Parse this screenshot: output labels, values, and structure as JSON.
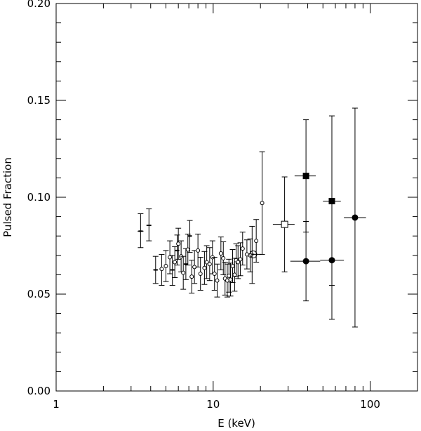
{
  "chart_data": {
    "type": "scatter",
    "title": "",
    "xlabel": "E (keV)",
    "ylabel": "Pulsed Fraction",
    "x_scale": "log",
    "xlim": [
      1,
      200
    ],
    "ylim": [
      0.0,
      0.2
    ],
    "x_tick_labels": [
      "1",
      "10",
      "100"
    ],
    "y_tick_labels": [
      "0.00",
      "0.05",
      "0.10",
      "0.15",
      "0.20"
    ],
    "grid": false,
    "legend": "none",
    "colors": {
      "ink": "#000000",
      "background": "#ffffff"
    },
    "series": [
      {
        "marker": "small-cross",
        "points": [
          {
            "x": 3.45,
            "y": 0.0825,
            "xerr": [
              3.3,
              3.6
            ],
            "yerr": [
              0.074,
              0.0915
            ]
          },
          {
            "x": 3.9,
            "y": 0.0855,
            "xerr": [
              3.75,
              4.05
            ],
            "yerr": [
              0.0775,
              0.094
            ]
          },
          {
            "x": 4.3,
            "y": 0.0625,
            "xerr": [
              4.15,
              4.45
            ],
            "yerr": [
              0.0555,
              0.0695
            ]
          },
          {
            "x": 5.5,
            "y": 0.0625,
            "xerr": [
              5.35,
              5.65
            ],
            "yerr": [
              0.0545,
              0.07
            ]
          },
          {
            "x": 5.9,
            "y": 0.0725,
            "xerr": [
              5.75,
              6.05
            ],
            "yerr": [
              0.065,
              0.0805
            ]
          },
          {
            "x": 6.7,
            "y": 0.0655,
            "xerr": [
              6.55,
              6.85
            ],
            "yerr": [
              0.0575,
              0.0735
            ]
          },
          {
            "x": 7.1,
            "y": 0.08,
            "xerr": [
              6.95,
              7.25
            ],
            "yerr": [
              0.0715,
              0.088
            ]
          },
          {
            "x": 17.7,
            "y": 0.0705,
            "xerr": [
              17.0,
              20.3
            ],
            "yerr": [
              0.0555,
              0.085
            ]
          }
        ]
      },
      {
        "marker": "small-open-circle",
        "points": [
          {
            "x": 4.7,
            "y": 0.063,
            "xerr": [
              4.55,
              4.85
            ],
            "yerr": [
              0.0545,
              0.0705
            ]
          },
          {
            "x": 5.0,
            "y": 0.0645,
            "xerr": [
              4.85,
              5.15
            ],
            "yerr": [
              0.0565,
              0.0725
            ]
          },
          {
            "x": 5.3,
            "y": 0.069,
            "xerr": [
              5.15,
              5.45
            ],
            "yerr": [
              0.0605,
              0.0775
            ]
          },
          {
            "x": 5.7,
            "y": 0.0665,
            "xerr": [
              5.55,
              5.85
            ],
            "yerr": [
              0.0585,
              0.0745
            ]
          },
          {
            "x": 6.0,
            "y": 0.076,
            "xerr": [
              5.85,
              6.15
            ],
            "yerr": [
              0.068,
              0.084
            ]
          },
          {
            "x": 6.25,
            "y": 0.0695,
            "xerr": [
              6.1,
              6.4
            ],
            "yerr": [
              0.0615,
              0.0775
            ]
          },
          {
            "x": 6.45,
            "y": 0.061,
            "xerr": [
              6.3,
              6.6
            ],
            "yerr": [
              0.0525,
              0.0695
            ]
          },
          {
            "x": 6.9,
            "y": 0.073,
            "xerr": [
              6.75,
              7.05
            ],
            "yerr": [
              0.065,
              0.081
            ]
          },
          {
            "x": 7.3,
            "y": 0.059,
            "xerr": [
              7.15,
              7.45
            ],
            "yerr": [
              0.0505,
              0.0675
            ]
          },
          {
            "x": 7.6,
            "y": 0.064,
            "xerr": [
              7.45,
              7.75
            ],
            "yerr": [
              0.0555,
              0.0725
            ]
          },
          {
            "x": 8.0,
            "y": 0.0725,
            "xerr": [
              7.85,
              8.15
            ],
            "yerr": [
              0.064,
              0.081
            ]
          },
          {
            "x": 8.3,
            "y": 0.0605,
            "xerr": [
              8.15,
              8.45
            ],
            "yerr": [
              0.052,
              0.069
            ]
          },
          {
            "x": 8.8,
            "y": 0.0635,
            "xerr": [
              8.65,
              8.95
            ],
            "yerr": [
              0.055,
              0.072
            ]
          },
          {
            "x": 9.1,
            "y": 0.0665,
            "xerr": [
              8.95,
              9.25
            ],
            "yerr": [
              0.058,
              0.075
            ]
          },
          {
            "x": 9.5,
            "y": 0.0655,
            "xerr": [
              9.35,
              9.65
            ],
            "yerr": [
              0.057,
              0.074
            ]
          },
          {
            "x": 9.9,
            "y": 0.069,
            "xerr": [
              9.75,
              10.05
            ],
            "yerr": [
              0.0605,
              0.0775
            ]
          },
          {
            "x": 10.2,
            "y": 0.0605,
            "xerr": [
              10.05,
              10.35
            ],
            "yerr": [
              0.052,
              0.069
            ]
          },
          {
            "x": 10.6,
            "y": 0.057,
            "xerr": [
              10.45,
              10.75
            ],
            "yerr": [
              0.0485,
              0.0655
            ]
          },
          {
            "x": 11.2,
            "y": 0.071,
            "xerr": [
              11.05,
              11.35
            ],
            "yerr": [
              0.0625,
              0.0795
            ]
          },
          {
            "x": 11.6,
            "y": 0.0685,
            "xerr": [
              11.45,
              11.75
            ],
            "yerr": [
              0.06,
              0.077
            ]
          },
          {
            "x": 11.9,
            "y": 0.058,
            "xerr": [
              11.75,
              12.05
            ],
            "yerr": [
              0.0495,
              0.0665
            ]
          },
          {
            "x": 12.3,
            "y": 0.057,
            "xerr": [
              12.15,
              12.45
            ],
            "yerr": [
              0.0485,
              0.0655
            ]
          },
          {
            "x": 12.6,
            "y": 0.0595,
            "xerr": [
              12.45,
              12.75
            ],
            "yerr": [
              0.051,
              0.068
            ]
          },
          {
            "x": 12.9,
            "y": 0.0575,
            "xerr": [
              12.75,
              13.05
            ],
            "yerr": [
              0.049,
              0.066
            ]
          },
          {
            "x": 13.3,
            "y": 0.0645,
            "xerr": [
              13.15,
              13.45
            ],
            "yerr": [
              0.056,
              0.073
            ]
          },
          {
            "x": 13.7,
            "y": 0.06,
            "xerr": [
              13.55,
              13.85
            ],
            "yerr": [
              0.0515,
              0.0685
            ]
          },
          {
            "x": 14.0,
            "y": 0.0675,
            "xerr": [
              13.85,
              14.15
            ],
            "yerr": [
              0.059,
              0.076
            ]
          },
          {
            "x": 14.4,
            "y": 0.0665,
            "xerr": [
              14.25,
              14.55
            ],
            "yerr": [
              0.058,
              0.075
            ]
          },
          {
            "x": 14.9,
            "y": 0.068,
            "xerr": [
              14.75,
              15.05
            ],
            "yerr": [
              0.0595,
              0.0765
            ]
          },
          {
            "x": 15.4,
            "y": 0.0735,
            "xerr": [
              15.25,
              15.55
            ],
            "yerr": [
              0.065,
              0.082
            ]
          },
          {
            "x": 16.4,
            "y": 0.0705,
            "xerr": [
              16.2,
              16.6
            ],
            "yerr": [
              0.063,
              0.078
            ]
          },
          {
            "x": 17.2,
            "y": 0.07,
            "xerr": [
              17.0,
              17.4
            ],
            "yerr": [
              0.0615,
              0.0785
            ]
          },
          {
            "x": 18.8,
            "y": 0.0775,
            "xerr": [
              18.6,
              19.0
            ],
            "yerr": [
              0.0665,
              0.0885
            ]
          },
          {
            "x": 20.5,
            "y": 0.097,
            "xerr": [
              20.3,
              20.7
            ],
            "yerr": [
              0.0705,
              0.1235
            ]
          }
        ]
      },
      {
        "marker": "large-open-circle",
        "points": [
          {
            "x": 18.0,
            "y": 0.0705,
            "xerr": [
              18.0,
              18.0
            ],
            "yerr": [
              0.0705,
              0.0705
            ]
          }
        ]
      },
      {
        "marker": "open-square",
        "points": [
          {
            "x": 28.5,
            "y": 0.086,
            "xerr": [
              24.0,
              33.0
            ],
            "yerr": [
              0.0615,
              0.1105
            ]
          }
        ]
      },
      {
        "marker": "filled-square",
        "points": [
          {
            "x": 39.0,
            "y": 0.111,
            "xerr": [
              33.0,
              45.0
            ],
            "yerr": [
              0.082,
              0.14
            ]
          },
          {
            "x": 57.0,
            "y": 0.098,
            "xerr": [
              50.0,
              65.0
            ],
            "yerr": [
              0.0545,
              0.142
            ]
          }
        ]
      },
      {
        "marker": "filled-circle",
        "points": [
          {
            "x": 39.0,
            "y": 0.067,
            "xerr": [
              31.0,
              48.0
            ],
            "yerr": [
              0.0465,
              0.0875
            ]
          },
          {
            "x": 57.0,
            "y": 0.0675,
            "xerr": [
              48.0,
              68.0
            ],
            "yerr": [
              0.037,
              0.098
            ]
          },
          {
            "x": 80.0,
            "y": 0.0895,
            "xerr": [
              68.0,
              94.0
            ],
            "yerr": [
              0.033,
              0.146
            ]
          }
        ]
      }
    ]
  }
}
